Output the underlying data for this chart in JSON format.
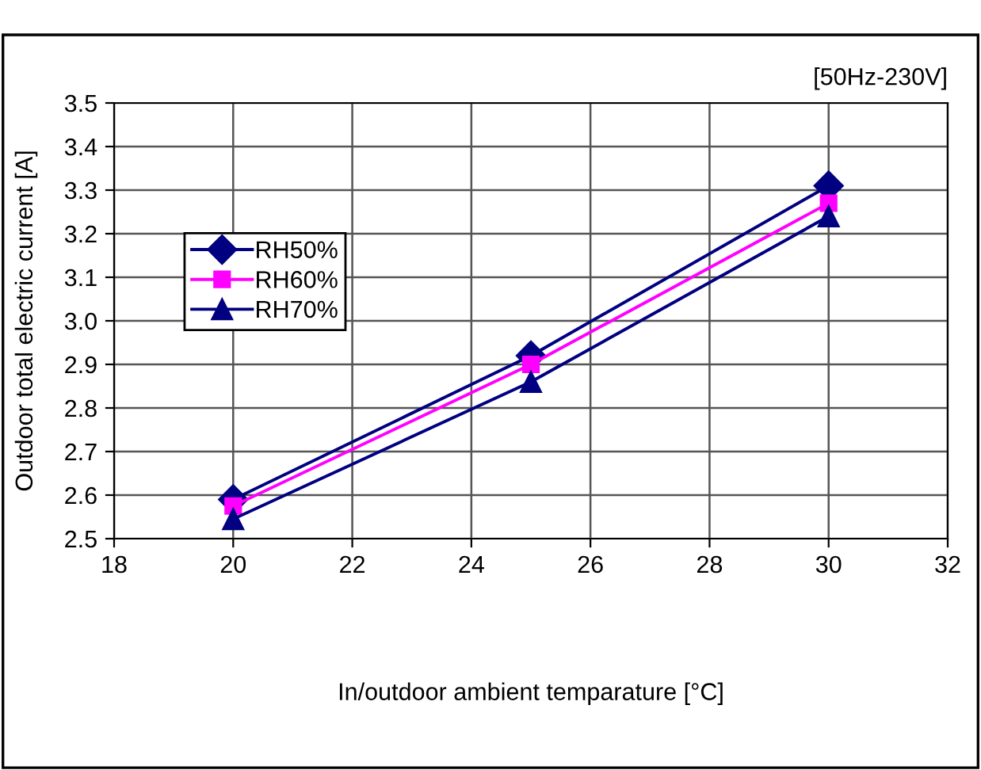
{
  "chart_data": {
    "type": "line",
    "xlabel": "In/outdoor ambient temparature [°C]",
    "ylabel": "Outdoor total electric current [A]",
    "x": [
      20,
      25,
      30
    ],
    "series": [
      {
        "name": "RH50%",
        "color": "#000080",
        "marker": "diamond",
        "values": [
          2.59,
          2.92,
          3.31
        ]
      },
      {
        "name": "RH60%",
        "color": "#ff00ff",
        "marker": "square",
        "values": [
          2.575,
          2.9,
          3.27
        ]
      },
      {
        "name": "RH70%",
        "color": "#000080",
        "marker": "triangle",
        "values": [
          2.545,
          2.86,
          3.24
        ]
      }
    ],
    "xlim": [
      18,
      32
    ],
    "xticks": [
      18,
      20,
      22,
      24,
      26,
      28,
      30,
      32
    ],
    "ylim": [
      2.5,
      3.5
    ],
    "yticks": [
      {
        "value": 2.5,
        "label": "2.5"
      },
      {
        "value": 2.6,
        "label": "2.6"
      },
      {
        "value": 2.7,
        "label": "2.7"
      },
      {
        "value": 2.8,
        "label": "2.8"
      },
      {
        "value": 2.9,
        "label": "2.9"
      },
      {
        "value": 3.0,
        "label": "3.0"
      },
      {
        "value": 3.1,
        "label": "3.1"
      },
      {
        "value": 3.2,
        "label": "3.2"
      },
      {
        "value": 3.3,
        "label": "3.3"
      },
      {
        "value": 3.4,
        "label": "3.4"
      },
      {
        "value": 3.5,
        "label": "3.5"
      }
    ],
    "annotations": [
      "[50Hz-230V]"
    ],
    "grid": true,
    "legend": "left",
    "line_style": "solid"
  }
}
